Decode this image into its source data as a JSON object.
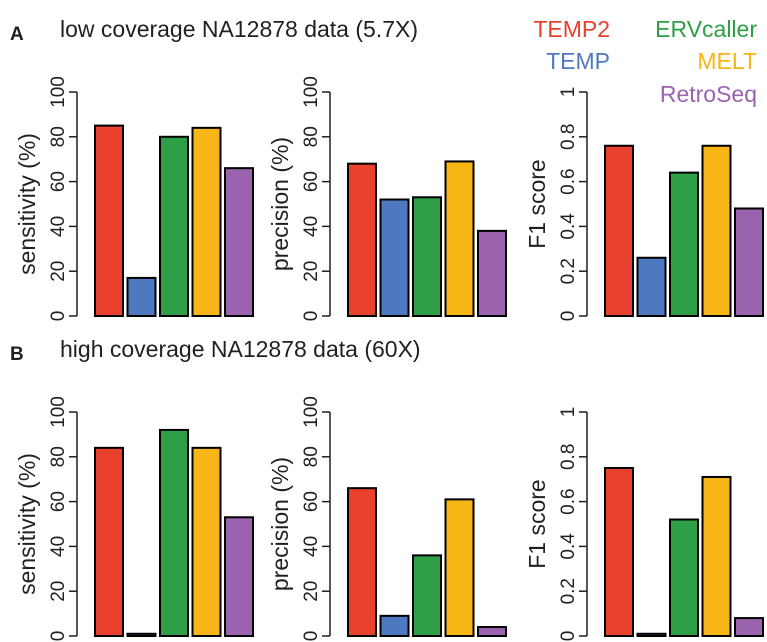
{
  "legend": [
    {
      "name": "TEMP2",
      "color": "#e8412e"
    },
    {
      "name": "ERVcaller",
      "color": "#2e9e47"
    },
    {
      "name": "TEMP",
      "color": "#4e79c0"
    },
    {
      "name": "MELT",
      "color": "#f7b516"
    },
    {
      "name": "RetroSeq",
      "color": "#9b63ae"
    }
  ],
  "panels": [
    {
      "letter": "A",
      "title": "low coverage NA12878 data (5.7X)"
    },
    {
      "letter": "B",
      "title": "high coverage NA12878 data (60X)"
    }
  ],
  "chart_data": [
    {
      "type": "bar",
      "panel": "A",
      "ylabel": "sensitivity (%)",
      "ylim": [
        0,
        100
      ],
      "yticks": [
        "0",
        "20",
        "40",
        "60",
        "80",
        "100"
      ],
      "categories": [
        "TEMP2",
        "TEMP",
        "ERVcaller",
        "MELT",
        "RetroSeq"
      ],
      "values": [
        85,
        17,
        80,
        84,
        66
      ]
    },
    {
      "type": "bar",
      "panel": "A",
      "ylabel": "precision (%)",
      "ylim": [
        0,
        100
      ],
      "yticks": [
        "0",
        "20",
        "40",
        "60",
        "80",
        "100"
      ],
      "categories": [
        "TEMP2",
        "TEMP",
        "ERVcaller",
        "MELT",
        "RetroSeq"
      ],
      "values": [
        68,
        52,
        53,
        69,
        38
      ]
    },
    {
      "type": "bar",
      "panel": "A",
      "ylabel": "F1 score",
      "ylim": [
        0,
        1
      ],
      "yticks": [
        "0",
        "0.2",
        "0.4",
        "0.6",
        "0.8",
        "1"
      ],
      "categories": [
        "TEMP2",
        "TEMP",
        "ERVcaller",
        "MELT",
        "RetroSeq"
      ],
      "values": [
        0.76,
        0.26,
        0.64,
        0.76,
        0.48
      ]
    },
    {
      "type": "bar",
      "panel": "B",
      "ylabel": "sensitivity (%)",
      "ylim": [
        0,
        100
      ],
      "yticks": [
        "0",
        "20",
        "40",
        "60",
        "80",
        "100"
      ],
      "categories": [
        "TEMP2",
        "TEMP",
        "ERVcaller",
        "MELT",
        "RetroSeq"
      ],
      "values": [
        84,
        1,
        92,
        84,
        53
      ]
    },
    {
      "type": "bar",
      "panel": "B",
      "ylabel": "precision (%)",
      "ylim": [
        0,
        100
      ],
      "yticks": [
        "0",
        "20",
        "40",
        "60",
        "80",
        "100"
      ],
      "categories": [
        "TEMP2",
        "TEMP",
        "ERVcaller",
        "MELT",
        "RetroSeq"
      ],
      "values": [
        66,
        9,
        36,
        61,
        4
      ]
    },
    {
      "type": "bar",
      "panel": "B",
      "ylabel": "F1 score",
      "ylim": [
        0,
        1
      ],
      "yticks": [
        "0",
        "0.2",
        "0.4",
        "0.6",
        "0.8",
        "1"
      ],
      "categories": [
        "TEMP2",
        "TEMP",
        "ERVcaller",
        "MELT",
        "RetroSeq"
      ],
      "values": [
        0.75,
        0.01,
        0.52,
        0.71,
        0.08
      ]
    }
  ]
}
